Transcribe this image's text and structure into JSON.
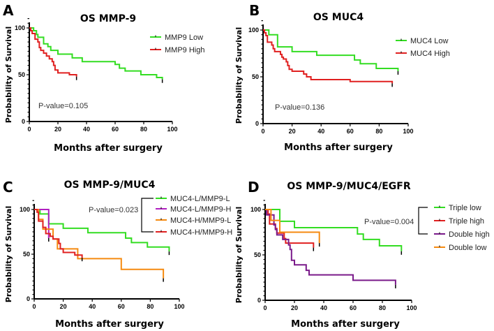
{
  "chart_data": [
    {
      "type": "line",
      "panel": "A",
      "title": "OS MMP-9",
      "xlabel": "Months after surgery",
      "ylabel": "Probability of Survival",
      "xlim": [
        0,
        100
      ],
      "ylim": [
        0,
        100
      ],
      "xticks": [
        0,
        20,
        40,
        60,
        80,
        100
      ],
      "yticks": [
        0,
        50,
        100
      ],
      "pvalue": "P-value=0.105",
      "legend_placement": "top-right",
      "series": [
        {
          "name": "MMP9 Low",
          "color": "#33dd22",
          "steps": [
            [
              0,
              100
            ],
            [
              3,
              97
            ],
            [
              5,
              93
            ],
            [
              6,
              90
            ],
            [
              10,
              83
            ],
            [
              13,
              80
            ],
            [
              15,
              76
            ],
            [
              20,
              72
            ],
            [
              30,
              68
            ],
            [
              37,
              64
            ],
            [
              60,
              61
            ],
            [
              63,
              57
            ],
            [
              67,
              54
            ],
            [
              78,
              50
            ],
            [
              89,
              47
            ],
            [
              93,
              45
            ]
          ]
        },
        {
          "name": "MMP9 High",
          "color": "#e02020",
          "steps": [
            [
              0,
              100
            ],
            [
              1,
              97
            ],
            [
              2,
              94
            ],
            [
              4,
              88
            ],
            [
              6,
              85
            ],
            [
              7,
              79
            ],
            [
              8,
              76
            ],
            [
              10,
              73
            ],
            [
              12,
              70
            ],
            [
              14,
              67
            ],
            [
              16,
              64
            ],
            [
              17,
              60
            ],
            [
              18,
              55
            ],
            [
              20,
              52
            ],
            [
              28,
              50
            ],
            [
              33,
              48
            ]
          ]
        }
      ]
    },
    {
      "type": "line",
      "panel": "B",
      "title": "OS MUC4",
      "xlabel": "Months after surgery",
      "ylabel": "Probability of Survival",
      "xlim": [
        0,
        100
      ],
      "ylim": [
        0,
        100
      ],
      "xticks": [
        0,
        20,
        40,
        60,
        80,
        100
      ],
      "yticks": [
        0,
        50,
        100
      ],
      "pvalue": "P-value=0.136",
      "legend_placement": "top-right",
      "series": [
        {
          "name": "MUC4 Low",
          "color": "#33dd22",
          "steps": [
            [
              0,
              100
            ],
            [
              4,
              95
            ],
            [
              10,
              82
            ],
            [
              20,
              77
            ],
            [
              37,
              73
            ],
            [
              63,
              68
            ],
            [
              67,
              64
            ],
            [
              78,
              59
            ],
            [
              93,
              56
            ]
          ]
        },
        {
          "name": "MUC4 High",
          "color": "#e02020",
          "steps": [
            [
              0,
              100
            ],
            [
              1,
              97
            ],
            [
              2,
              94
            ],
            [
              3,
              87
            ],
            [
              6,
              84
            ],
            [
              7,
              80
            ],
            [
              8,
              77
            ],
            [
              12,
              74
            ],
            [
              13,
              71
            ],
            [
              14,
              69
            ],
            [
              16,
              66
            ],
            [
              17,
              62
            ],
            [
              18,
              58
            ],
            [
              20,
              56
            ],
            [
              28,
              53
            ],
            [
              30,
              50
            ],
            [
              33,
              47
            ],
            [
              60,
              45
            ],
            [
              89,
              43
            ]
          ]
        }
      ]
    },
    {
      "type": "line",
      "panel": "C",
      "title": "OS MMP-9/MUC4",
      "xlabel": "Months after surgery",
      "ylabel": "Probability of Survival",
      "xlim": [
        0,
        100
      ],
      "ylim": [
        0,
        100
      ],
      "xticks": [
        0,
        20,
        40,
        60,
        80,
        100
      ],
      "yticks": [
        0,
        50,
        100
      ],
      "pvalue": "P-value=0.023",
      "legend_placement": "top-right",
      "series": [
        {
          "name": "MUC4-L/MMP9-L",
          "color": "#33dd22",
          "steps": [
            [
              0,
              100
            ],
            [
              4,
              95
            ],
            [
              10,
              84
            ],
            [
              20,
              79
            ],
            [
              37,
              74
            ],
            [
              63,
              68
            ],
            [
              67,
              63
            ],
            [
              78,
              58
            ],
            [
              93,
              53
            ]
          ]
        },
        {
          "name": "MUC4-L/MMP9-H",
          "color": "#b020c0",
          "steps": [
            [
              0,
              100
            ],
            [
              10,
              68
            ]
          ]
        },
        {
          "name": "MUC4-H/MMP9-L",
          "color": "#f58a10",
          "steps": [
            [
              0,
              100
            ],
            [
              3,
              89
            ],
            [
              6,
              78
            ],
            [
              13,
              67
            ],
            [
              16,
              56
            ],
            [
              30,
              45
            ],
            [
              60,
              33
            ],
            [
              89,
              23
            ]
          ]
        },
        {
          "name": "MUC4-H/MMP9-H",
          "color": "#e02020",
          "steps": [
            [
              0,
              100
            ],
            [
              2,
              97
            ],
            [
              3,
              87
            ],
            [
              6,
              80
            ],
            [
              8,
              73
            ],
            [
              11,
              70
            ],
            [
              13,
              67
            ],
            [
              17,
              62
            ],
            [
              18,
              56
            ],
            [
              20,
              52
            ],
            [
              28,
              49
            ],
            [
              33,
              46
            ]
          ]
        }
      ]
    },
    {
      "type": "line",
      "panel": "D",
      "title": "OS MMP-9/MUC4/EGFR",
      "xlabel": "Months after surgery",
      "ylabel": "Probability of Survival",
      "xlim": [
        0,
        100
      ],
      "ylim": [
        0,
        100
      ],
      "xticks": [
        0,
        20,
        40,
        60,
        80,
        100
      ],
      "yticks": [
        0,
        50,
        100
      ],
      "pvalue": "P-value=0.004",
      "legend_placement": "right",
      "series": [
        {
          "name": "Triple low",
          "color": "#33dd22",
          "steps": [
            [
              0,
              100
            ],
            [
              10,
              87
            ],
            [
              20,
              80
            ],
            [
              63,
              73
            ],
            [
              67,
              67
            ],
            [
              78,
              60
            ],
            [
              93,
              54
            ]
          ]
        },
        {
          "name": "Triple high",
          "color": "#e02020",
          "steps": [
            [
              0,
              100
            ],
            [
              2,
              95
            ],
            [
              3,
              84
            ],
            [
              7,
              79
            ],
            [
              8,
              74
            ],
            [
              13,
              68
            ],
            [
              14,
              63
            ],
            [
              33,
              58
            ]
          ]
        },
        {
          "name": "Double high",
          "color": "#7a1a8a",
          "steps": [
            [
              0,
              100
            ],
            [
              1,
              94
            ],
            [
              6,
              83
            ],
            [
              7,
              78
            ],
            [
              8,
              72
            ],
            [
              12,
              67
            ],
            [
              16,
              61
            ],
            [
              17,
              56
            ],
            [
              18,
              44
            ],
            [
              20,
              39
            ],
            [
              28,
              33
            ],
            [
              30,
              28
            ],
            [
              60,
              22
            ],
            [
              89,
              17
            ]
          ]
        },
        {
          "name": "Double low",
          "color": "#f58a10",
          "steps": [
            [
              0,
              100
            ],
            [
              4,
              88
            ],
            [
              10,
              75
            ],
            [
              37,
              63
            ]
          ]
        }
      ]
    }
  ]
}
